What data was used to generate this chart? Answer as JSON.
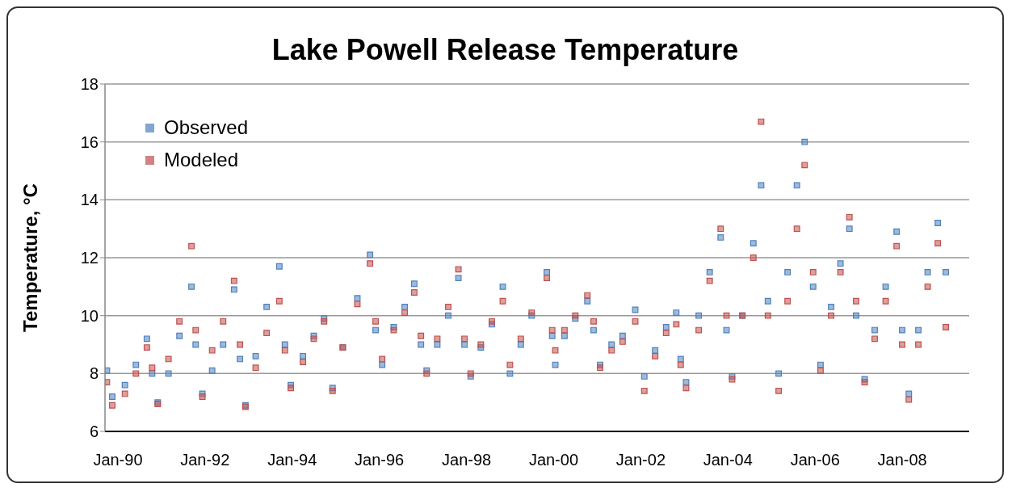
{
  "chart_data": {
    "type": "scatter",
    "title": "Lake Powell Release Temperature",
    "ylabel": "Temperature, °C",
    "xlim": [
      "1989-09-15",
      "2009-07-15"
    ],
    "xticks": [
      {
        "value": "1990-01-01",
        "label": "Jan-90"
      },
      {
        "value": "1992-01-01",
        "label": "Jan-92"
      },
      {
        "value": "1994-01-01",
        "label": "Jan-94"
      },
      {
        "value": "1996-01-01",
        "label": "Jan-96"
      },
      {
        "value": "1998-01-01",
        "label": "Jan-98"
      },
      {
        "value": "2000-01-01",
        "label": "Jan-00"
      },
      {
        "value": "2002-01-01",
        "label": "Jan-02"
      },
      {
        "value": "2004-01-01",
        "label": "Jan-04"
      },
      {
        "value": "2006-01-01",
        "label": "Jan-06"
      },
      {
        "value": "2008-01-01",
        "label": "Jan-08"
      }
    ],
    "ylim": [
      6,
      18
    ],
    "yticks": [
      6,
      8,
      10,
      12,
      14,
      16,
      18
    ],
    "grid": "y",
    "legend": "top left",
    "marker": "square",
    "x": [
      "1989-10-01",
      "1989-11-15",
      "1990-03-01",
      "1990-06-01",
      "1990-09-01",
      "1990-10-15",
      "1990-12-01",
      "1991-03-01",
      "1991-06-01",
      "1991-09-10",
      "1991-10-15",
      "1991-12-10",
      "1992-03-01",
      "1992-06-01",
      "1992-09-01",
      "1992-10-20",
      "1992-12-05",
      "1993-03-01",
      "1993-06-01",
      "1993-09-15",
      "1993-11-01",
      "1993-12-20",
      "1994-04-01",
      "1994-07-01",
      "1994-09-25",
      "1994-12-05",
      "1995-03-01",
      "1995-07-01",
      "1995-10-15",
      "1995-12-01",
      "1996-01-25",
      "1996-05-01",
      "1996-08-01",
      "1996-10-20",
      "1996-12-15",
      "1997-02-01",
      "1997-05-01",
      "1997-08-01",
      "1997-10-25",
      "1997-12-15",
      "1998-02-05",
      "1998-05-01",
      "1998-08-01",
      "1998-11-01",
      "1998-12-31",
      "1999-04-01",
      "1999-07-01",
      "1999-11-05",
      "1999-12-20",
      "2000-01-15",
      "2000-04-01",
      "2000-07-01",
      "2000-10-10",
      "2000-12-01",
      "2001-01-25",
      "2001-05-01",
      "2001-08-01",
      "2001-11-15",
      "2002-01-30",
      "2002-05-01",
      "2002-08-01",
      "2002-10-25",
      "2002-12-01",
      "2003-01-15",
      "2003-05-01",
      "2003-08-01",
      "2003-11-01",
      "2003-12-20",
      "2004-02-05",
      "2004-05-01",
      "2004-08-01",
      "2004-10-05",
      "2004-12-01",
      "2005-03-01",
      "2005-05-15",
      "2005-08-01",
      "2005-10-05",
      "2005-12-15",
      "2006-02-15",
      "2006-05-15",
      "2006-08-01",
      "2006-10-15",
      "2006-12-10",
      "2007-02-20",
      "2007-05-15",
      "2007-08-15",
      "2007-11-15",
      "2007-12-31",
      "2008-02-25",
      "2008-05-15",
      "2008-08-01",
      "2008-10-25",
      "2008-12-31"
    ],
    "series": [
      {
        "name": "Observed",
        "color": "#4f81bd",
        "values": [
          8.1,
          7.2,
          7.6,
          8.3,
          9.2,
          8.0,
          7.0,
          8.0,
          9.3,
          11.0,
          9.0,
          7.3,
          8.1,
          9.0,
          10.9,
          8.5,
          6.9,
          8.6,
          10.3,
          11.7,
          9.0,
          7.6,
          8.6,
          9.3,
          9.9,
          7.5,
          8.9,
          10.6,
          12.1,
          9.5,
          8.3,
          9.6,
          10.3,
          11.1,
          9.0,
          8.1,
          9.0,
          10.0,
          11.3,
          9.0,
          7.9,
          8.9,
          9.7,
          11.0,
          8.0,
          9.0,
          10.0,
          11.5,
          9.3,
          8.3,
          9.3,
          9.9,
          10.5,
          9.5,
          8.3,
          9.0,
          9.3,
          10.2,
          7.9,
          8.8,
          9.6,
          10.1,
          8.5,
          7.7,
          10.0,
          11.5,
          12.7,
          9.5,
          7.9,
          10.0,
          12.5,
          14.5,
          10.5,
          8.0,
          11.5,
          14.5,
          16.0,
          11.0,
          8.3,
          10.3,
          11.8,
          13.0,
          10.0,
          7.8,
          9.5,
          11.0,
          12.9,
          9.5,
          7.3,
          9.5,
          11.5,
          13.2,
          11.5
        ]
      },
      {
        "name": "Modeled",
        "color": "#c0504d",
        "values": [
          7.7,
          6.9,
          7.3,
          8.0,
          8.9,
          8.2,
          6.95,
          8.5,
          9.8,
          12.4,
          9.5,
          7.2,
          8.8,
          9.8,
          11.2,
          9.0,
          6.85,
          8.2,
          9.4,
          10.5,
          8.8,
          7.5,
          8.4,
          9.2,
          9.8,
          7.4,
          8.9,
          10.4,
          11.8,
          9.8,
          8.5,
          9.5,
          10.1,
          10.8,
          9.3,
          8.0,
          9.2,
          10.3,
          11.6,
          9.2,
          8.0,
          9.0,
          9.8,
          10.5,
          8.3,
          9.2,
          10.1,
          11.3,
          9.5,
          8.8,
          9.5,
          10.0,
          10.7,
          9.8,
          8.2,
          8.8,
          9.1,
          9.8,
          7.4,
          8.6,
          9.4,
          9.7,
          8.3,
          7.5,
          9.5,
          11.2,
          13.0,
          10.0,
          7.8,
          10.0,
          12.0,
          16.7,
          10.0,
          7.4,
          10.5,
          13.0,
          15.2,
          11.5,
          8.1,
          10.0,
          11.5,
          13.4,
          10.5,
          7.7,
          9.2,
          10.5,
          12.4,
          9.0,
          7.1,
          9.0,
          11.0,
          12.5,
          9.6
        ]
      }
    ]
  }
}
